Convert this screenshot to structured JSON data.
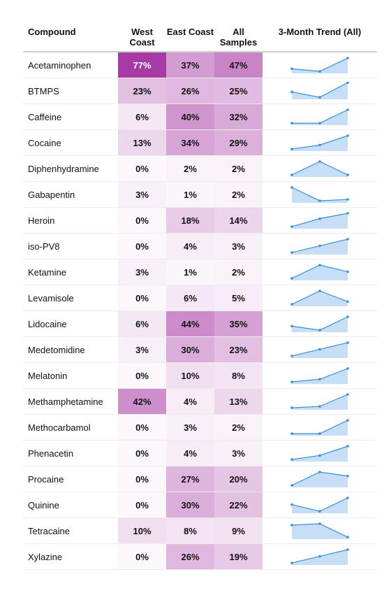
{
  "chart_data": {
    "type": "table",
    "columns": {
      "compound": "Compound",
      "west": "West Coast",
      "east": "East Coast",
      "all": "All Samples",
      "trend": "3-Month Trend (All)"
    },
    "heat_color": "#a83aa6",
    "spark_line_color": "#3a8fd6",
    "spark_fill_color": "#c6dff6",
    "rows": [
      {
        "compound": "Acetaminophen",
        "west": "77%",
        "east": "37%",
        "all": "47%",
        "w": 77,
        "e": 37,
        "a": 47,
        "trend": [
          3,
          1,
          11
        ]
      },
      {
        "compound": "BTMPS",
        "west": "23%",
        "east": "26%",
        "all": "25%",
        "w": 23,
        "e": 26,
        "a": 25,
        "trend": [
          5,
          1,
          12
        ]
      },
      {
        "compound": "Caffeine",
        "west": "6%",
        "east": "40%",
        "all": "32%",
        "w": 6,
        "e": 40,
        "a": 32,
        "trend": [
          1,
          1,
          11
        ]
      },
      {
        "compound": "Cocaine",
        "west": "13%",
        "east": "34%",
        "all": "29%",
        "w": 13,
        "e": 34,
        "a": 29,
        "trend": [
          1,
          4,
          11
        ]
      },
      {
        "compound": "Diphenhydramine",
        "west": "0%",
        "east": "2%",
        "all": "2%",
        "w": 0,
        "e": 2,
        "a": 2,
        "trend": [
          1,
          11,
          1
        ]
      },
      {
        "compound": "Gabapentin",
        "west": "3%",
        "east": "1%",
        "all": "2%",
        "w": 3,
        "e": 1,
        "a": 2,
        "trend": [
          11,
          1,
          2
        ]
      },
      {
        "compound": "Heroin",
        "west": "0%",
        "east": "18%",
        "all": "14%",
        "w": 0,
        "e": 18,
        "a": 14,
        "trend": [
          1,
          7,
          11
        ]
      },
      {
        "compound": "iso-PV8",
        "west": "0%",
        "east": "4%",
        "all": "3%",
        "w": 0,
        "e": 4,
        "a": 3,
        "trend": [
          1,
          6,
          11
        ]
      },
      {
        "compound": "Ketamine",
        "west": "3%",
        "east": "1%",
        "all": "2%",
        "w": 3,
        "e": 1,
        "a": 2,
        "trend": [
          1,
          11,
          6
        ]
      },
      {
        "compound": "Levamisole",
        "west": "0%",
        "east": "6%",
        "all": "5%",
        "w": 0,
        "e": 6,
        "a": 5,
        "trend": [
          1,
          11,
          3
        ]
      },
      {
        "compound": "Lidocaine",
        "west": "6%",
        "east": "44%",
        "all": "35%",
        "w": 6,
        "e": 44,
        "a": 35,
        "trend": [
          4,
          1,
          11
        ]
      },
      {
        "compound": "Medetomidine",
        "west": "3%",
        "east": "30%",
        "all": "23%",
        "w": 3,
        "e": 30,
        "a": 23,
        "trend": [
          1,
          6,
          11
        ]
      },
      {
        "compound": "Melatonin",
        "west": "0%",
        "east": "10%",
        "all": "8%",
        "w": 0,
        "e": 10,
        "a": 8,
        "trend": [
          1,
          3,
          11
        ]
      },
      {
        "compound": "Methamphetamine",
        "west": "42%",
        "east": "4%",
        "all": "13%",
        "w": 42,
        "e": 4,
        "a": 13,
        "trend": [
          1,
          2,
          11
        ]
      },
      {
        "compound": "Methocarbamol",
        "west": "0%",
        "east": "3%",
        "all": "2%",
        "w": 0,
        "e": 3,
        "a": 2,
        "trend": [
          1,
          1,
          11
        ]
      },
      {
        "compound": "Phenacetin",
        "west": "0%",
        "east": "4%",
        "all": "3%",
        "w": 0,
        "e": 4,
        "a": 3,
        "trend": [
          1,
          4,
          11
        ]
      },
      {
        "compound": "Procaine",
        "west": "0%",
        "east": "27%",
        "all": "20%",
        "w": 0,
        "e": 27,
        "a": 20,
        "trend": [
          1,
          11,
          8
        ]
      },
      {
        "compound": "Quinine",
        "west": "0%",
        "east": "30%",
        "all": "22%",
        "w": 0,
        "e": 30,
        "a": 22,
        "trend": [
          6,
          1,
          11
        ]
      },
      {
        "compound": "Tetracaine",
        "west": "10%",
        "east": "8%",
        "all": "9%",
        "w": 10,
        "e": 8,
        "a": 9,
        "trend": [
          10,
          11,
          1
        ]
      },
      {
        "compound": "Xylazine",
        "west": "0%",
        "east": "26%",
        "all": "19%",
        "w": 0,
        "e": 26,
        "a": 19,
        "trend": [
          1,
          6,
          11
        ]
      }
    ]
  }
}
